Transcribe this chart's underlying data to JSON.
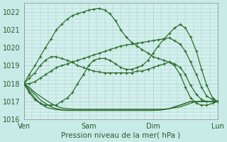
{
  "xlabel": "Pression niveau de la mer( hPa )",
  "bg_color": "#c8ebe8",
  "plot_bg_color": "#d4f0ec",
  "grid_color": "#9ecece",
  "line_color": "#2d6e2d",
  "ylim": [
    1016.0,
    1022.5
  ],
  "yticks": [
    1016,
    1017,
    1018,
    1019,
    1020,
    1021,
    1022
  ],
  "xlim": [
    0,
    3.0
  ],
  "xtick_positions": [
    0.0,
    1.0,
    2.0,
    3.0
  ],
  "day_labels": [
    "Ven",
    "Sam",
    "Dim",
    "Lun"
  ],
  "series": [
    {
      "x": [
        0.0,
        0.08,
        0.17,
        0.25,
        0.33,
        0.42,
        0.5,
        0.58,
        0.67,
        0.75,
        0.83,
        0.92,
        1.0,
        1.08,
        1.17,
        1.25,
        1.33,
        1.42,
        1.5,
        1.58,
        1.67,
        1.75,
        1.83,
        1.92,
        2.0,
        2.08,
        2.17,
        2.25,
        2.33,
        2.42,
        2.5,
        2.58,
        2.67,
        2.75,
        2.83,
        2.92,
        3.0
      ],
      "y": [
        1018.0,
        1018.0,
        1018.1,
        1018.3,
        1018.5,
        1018.7,
        1018.9,
        1019.0,
        1019.1,
        1019.2,
        1019.3,
        1019.4,
        1019.5,
        1019.6,
        1019.7,
        1019.8,
        1019.9,
        1020.0,
        1020.1,
        1020.15,
        1020.2,
        1020.25,
        1020.3,
        1020.35,
        1020.4,
        1020.45,
        1020.5,
        1020.55,
        1020.4,
        1020.2,
        1019.8,
        1019.2,
        1018.5,
        1017.8,
        1017.3,
        1017.1,
        1017.0
      ],
      "markers": true
    },
    {
      "x": [
        0.0,
        0.08,
        0.17,
        0.25,
        0.33,
        0.42,
        0.5,
        0.58,
        0.67,
        0.75,
        0.83,
        0.92,
        1.0,
        1.08,
        1.17,
        1.25,
        1.33,
        1.42,
        1.5,
        1.58,
        1.67,
        1.75,
        1.83,
        1.92,
        2.0,
        2.08,
        2.17,
        2.25,
        2.33,
        2.42,
        2.5,
        2.58,
        2.67,
        2.75,
        2.83,
        2.92,
        3.0
      ],
      "y": [
        1018.0,
        1017.8,
        1017.5,
        1017.3,
        1017.1,
        1016.9,
        1016.75,
        1016.65,
        1016.6,
        1016.58,
        1016.57,
        1016.57,
        1016.57,
        1016.57,
        1016.57,
        1016.57,
        1016.57,
        1016.57,
        1016.57,
        1016.57,
        1016.57,
        1016.57,
        1016.57,
        1016.57,
        1016.57,
        1016.57,
        1016.57,
        1016.6,
        1016.65,
        1016.7,
        1016.8,
        1016.9,
        1017.0,
        1017.0,
        1017.0,
        1017.0,
        1017.0
      ],
      "markers": false
    },
    {
      "x": [
        0.0,
        0.08,
        0.17,
        0.25,
        0.33,
        0.42,
        0.5,
        0.58,
        0.67,
        0.75,
        0.83,
        0.92,
        1.0,
        1.08,
        1.17,
        1.25,
        1.33,
        1.42,
        1.5,
        1.58,
        1.67,
        1.75,
        1.83,
        1.92,
        2.0,
        2.08,
        2.17,
        2.25,
        2.33,
        2.42,
        2.5,
        2.58,
        2.67,
        2.75,
        2.83,
        2.92,
        3.0
      ],
      "y": [
        1018.0,
        1017.7,
        1017.4,
        1017.1,
        1016.9,
        1016.7,
        1016.6,
        1016.55,
        1016.52,
        1016.52,
        1016.52,
        1016.52,
        1016.52,
        1016.52,
        1016.52,
        1016.52,
        1016.52,
        1016.52,
        1016.52,
        1016.52,
        1016.52,
        1016.52,
        1016.52,
        1016.52,
        1016.52,
        1016.52,
        1016.55,
        1016.6,
        1016.7,
        1016.8,
        1016.9,
        1017.0,
        1017.0,
        1017.0,
        1017.0,
        1017.0,
        1017.0
      ],
      "markers": false
    },
    {
      "x": [
        0.0,
        0.08,
        0.17,
        0.25,
        0.33,
        0.42,
        0.5,
        0.58,
        0.67,
        0.75,
        0.83,
        0.92,
        1.0,
        1.08,
        1.17,
        1.25,
        1.33,
        1.42,
        1.5,
        1.58,
        1.67,
        1.75,
        1.83,
        1.92,
        2.0,
        2.08,
        2.17,
        2.25,
        2.33,
        2.42,
        2.5,
        2.58,
        2.67,
        2.75,
        2.83,
        2.92,
        3.0
      ],
      "y": [
        1018.0,
        1017.6,
        1017.2,
        1016.9,
        1016.7,
        1016.6,
        1016.55,
        1016.52,
        1016.5,
        1016.5,
        1016.5,
        1016.5,
        1016.5,
        1016.5,
        1016.5,
        1016.5,
        1016.5,
        1016.5,
        1016.5,
        1016.5,
        1016.5,
        1016.5,
        1016.5,
        1016.5,
        1016.5,
        1016.52,
        1016.55,
        1016.6,
        1016.7,
        1016.8,
        1016.9,
        1017.0,
        1017.0,
        1017.0,
        1017.0,
        1017.0,
        1017.0
      ],
      "markers": false
    },
    {
      "x": [
        0.0,
        0.08,
        0.17,
        0.25,
        0.33,
        0.42,
        0.5,
        0.58,
        0.67,
        0.75,
        0.83,
        0.92,
        1.0,
        1.08,
        1.17,
        1.25,
        1.33,
        1.42,
        1.5,
        1.58,
        1.67,
        1.75,
        1.83,
        1.92,
        2.0,
        2.08,
        2.17,
        2.25,
        2.33,
        2.42,
        2.5,
        2.58,
        2.67,
        2.75,
        2.83,
        2.92,
        3.0
      ],
      "y": [
        1018.0,
        1018.3,
        1018.6,
        1019.0,
        1019.3,
        1019.5,
        1019.5,
        1019.4,
        1019.3,
        1019.2,
        1019.0,
        1018.9,
        1018.8,
        1018.7,
        1018.65,
        1018.6,
        1018.6,
        1018.6,
        1018.6,
        1018.6,
        1018.6,
        1018.7,
        1018.7,
        1018.8,
        1018.9,
        1019.0,
        1019.1,
        1019.2,
        1019.1,
        1018.9,
        1018.5,
        1017.9,
        1017.4,
        1017.1,
        1017.0,
        1017.0,
        1017.0
      ],
      "markers": true
    },
    {
      "x": [
        0.0,
        0.08,
        0.17,
        0.25,
        0.33,
        0.42,
        0.5,
        0.58,
        0.67,
        0.75,
        0.83,
        0.92,
        1.0,
        1.08,
        1.17,
        1.25,
        1.33,
        1.42,
        1.5,
        1.58,
        1.67,
        1.75,
        1.83,
        1.92,
        2.0,
        2.08,
        2.17,
        2.25,
        2.33,
        2.42,
        2.5,
        2.58,
        2.67,
        2.75,
        2.83,
        2.92,
        3.0
      ],
      "y": [
        1018.0,
        1018.5,
        1019.0,
        1019.5,
        1020.0,
        1020.5,
        1021.0,
        1021.3,
        1021.6,
        1021.8,
        1021.9,
        1022.0,
        1022.1,
        1022.15,
        1022.2,
        1022.1,
        1021.9,
        1021.5,
        1021.0,
        1020.6,
        1020.3,
        1020.1,
        1019.9,
        1019.7,
        1019.5,
        1019.4,
        1019.3,
        1019.2,
        1019.0,
        1018.5,
        1017.8,
        1017.2,
        1016.9,
        1016.8,
        1016.8,
        1016.9,
        1017.0
      ],
      "markers": true
    },
    {
      "x": [
        0.0,
        0.08,
        0.17,
        0.25,
        0.33,
        0.42,
        0.5,
        0.58,
        0.67,
        0.75,
        0.83,
        0.92,
        1.0,
        1.08,
        1.17,
        1.25,
        1.33,
        1.42,
        1.5,
        1.58,
        1.67,
        1.75,
        1.83,
        1.92,
        2.0,
        2.08,
        2.17,
        2.25,
        2.33,
        2.42,
        2.5,
        2.58,
        2.67,
        2.75,
        2.83,
        2.92,
        3.0
      ],
      "y": [
        1018.0,
        1017.5,
        1017.1,
        1016.9,
        1016.8,
        1016.8,
        1016.8,
        1017.0,
        1017.2,
        1017.5,
        1018.0,
        1018.5,
        1019.0,
        1019.3,
        1019.4,
        1019.4,
        1019.3,
        1019.1,
        1018.9,
        1018.8,
        1018.8,
        1018.9,
        1019.0,
        1019.3,
        1019.7,
        1020.1,
        1020.5,
        1020.8,
        1021.1,
        1021.3,
        1021.1,
        1020.6,
        1019.8,
        1018.8,
        1017.9,
        1017.2,
        1017.0
      ],
      "markers": true
    }
  ],
  "marker_size": 3.0,
  "line_width": 0.9,
  "xlabel_fontsize": 7.5,
  "tick_fontsize": 7,
  "vline_x": 3.0
}
